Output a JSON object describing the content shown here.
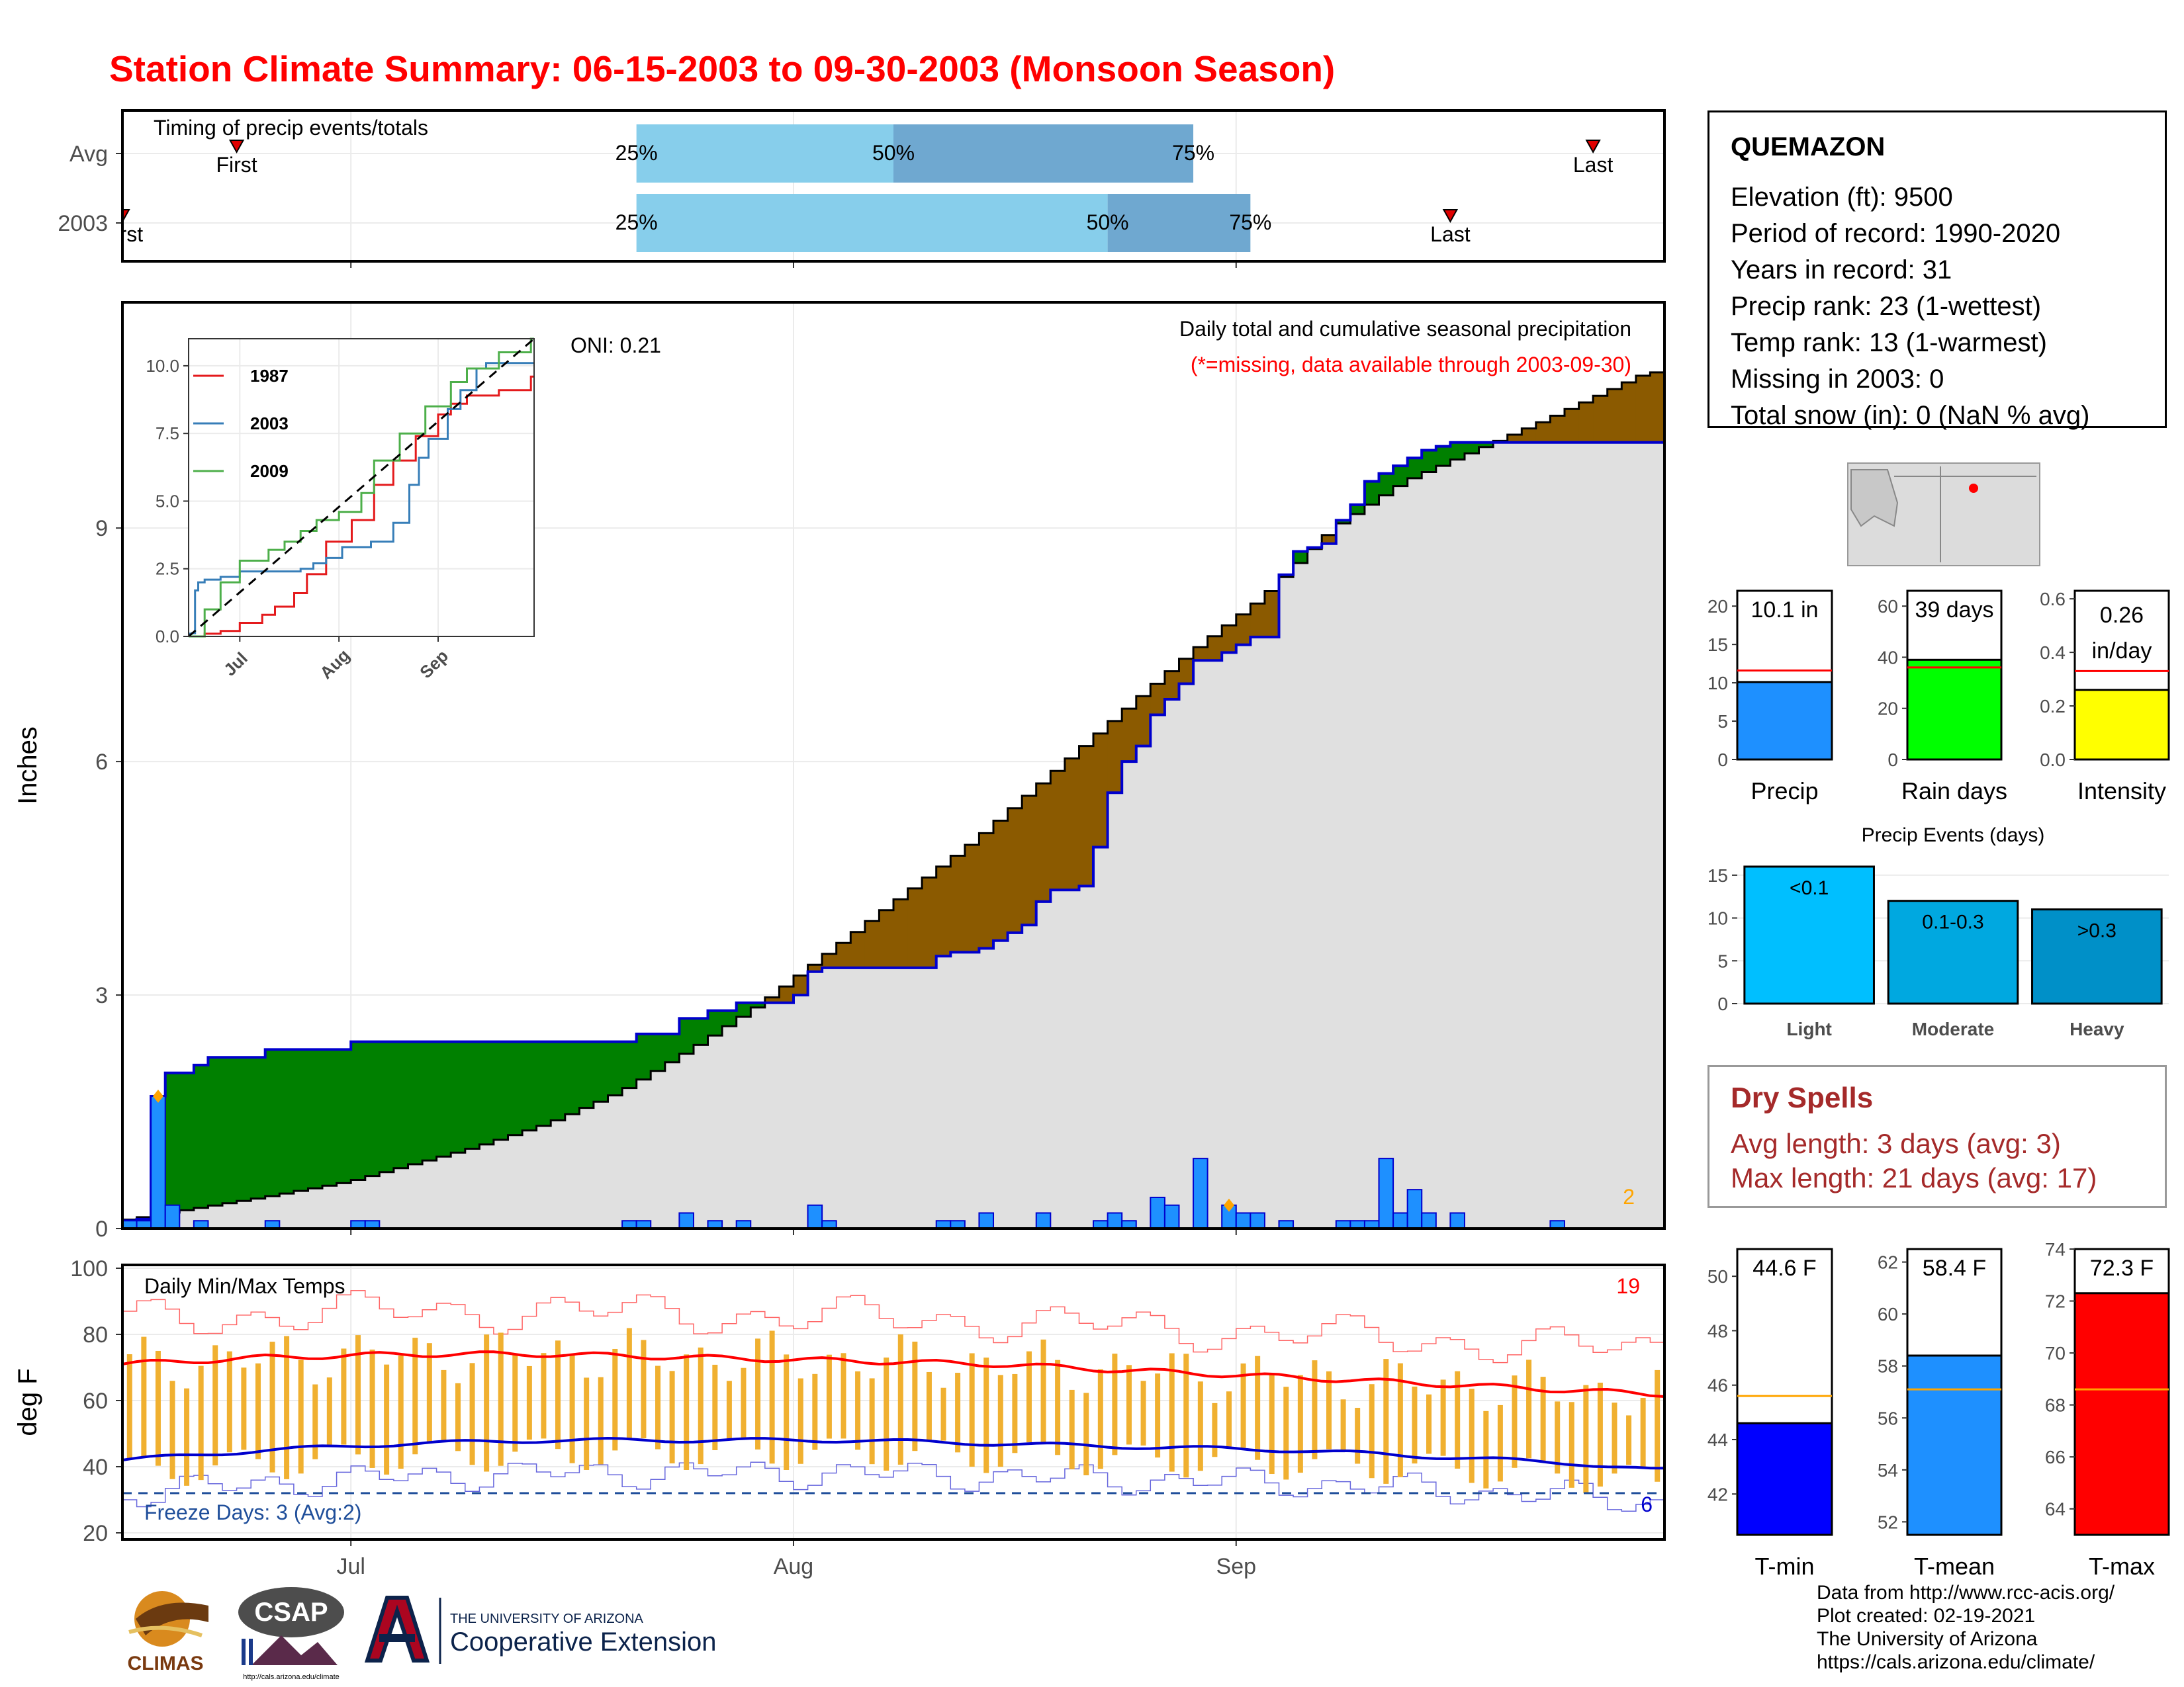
{
  "page": {
    "title": "Station Climate Summary: 06-15-2003 to 09-30-2003 (Monsoon Season)"
  },
  "timing_panel": {
    "title": "Timing of precip events/totals",
    "rows": [
      {
        "label": "Avg",
        "q25": "2003-07-21",
        "q50": "2003-08-08",
        "q75": "2003-08-29",
        "first": "2003-06-23",
        "last": "2003-09-26",
        "first_label": "First",
        "last_label": "Last"
      },
      {
        "label": "2003",
        "q25": "2003-07-21",
        "q50": "2003-08-23",
        "q75": "2003-09-02",
        "first": "2003-06-15",
        "last": "2003-09-16",
        "first_label": "First",
        "last_label": "Last"
      }
    ],
    "q_labels": [
      "25%",
      "50%",
      "75%"
    ],
    "colors": {
      "light": "#87ceeb",
      "dark": "#6fa8d0",
      "marker": "#e00000"
    }
  },
  "station_info": {
    "name": "QUEMAZON",
    "lines": [
      "Elevation (ft): 9500",
      "Period of record: 1990-2020",
      "Years in record: 31",
      "Precip rank: 23 (1-wettest)",
      "Temp rank: 13 (1-warmest)",
      "Missing in 2003: 0",
      "Total snow (in): 0 (NaN % avg)"
    ]
  },
  "dry_spells": {
    "title": "Dry Spells",
    "lines": [
      "Avg length: 3 days (avg: 3)",
      "Max length: 21 days (avg: 17)"
    ]
  },
  "footer": {
    "lines": [
      "Data from http://www.rcc-acis.org/",
      "Plot created: 02-19-2021",
      "The University of Arizona",
      "https://cals.arizona.edu/climate/"
    ]
  },
  "logos": {
    "climas": "CLIMAS",
    "csap": "CSAP",
    "csap_url": "http://cals.arizona.edu/climate",
    "ua_top": "THE UNIVERSITY OF ARIZONA",
    "ua_bottom": "Cooperative Extension"
  },
  "chart_data": [
    {
      "id": "precip_main",
      "type": "area",
      "ylabel": "Inches",
      "subtitle": "Daily total and cumulative seasonal precipitation",
      "note": "(*=missing, data available through 2003-09-30)",
      "oni": "ONI: 0.21",
      "corner_count": "2",
      "x_ticks": [
        "Jul",
        "Aug",
        "Sep"
      ],
      "yticks": [
        0,
        3,
        6,
        9
      ],
      "ylim": [
        0,
        11.9
      ],
      "x_start": "2003-06-15",
      "x_end": "2003-09-30",
      "cumulative_2003": {
        "x": [
          "2003-06-15",
          "2003-06-16",
          "2003-06-17",
          "2003-06-18",
          "2003-06-20",
          "2003-06-21",
          "2003-06-25",
          "2003-07-01",
          "2003-07-20",
          "2003-07-21",
          "2003-07-24",
          "2003-07-26",
          "2003-07-28",
          "2003-08-01",
          "2003-08-02",
          "2003-08-03",
          "2003-08-11",
          "2003-08-12",
          "2003-08-14",
          "2003-08-15",
          "2003-08-16",
          "2003-08-17",
          "2003-08-18",
          "2003-08-19",
          "2003-08-21",
          "2003-08-22",
          "2003-08-23",
          "2003-08-24",
          "2003-08-25",
          "2003-08-26",
          "2003-08-27",
          "2003-08-28",
          "2003-08-29",
          "2003-08-31",
          "2003-09-01",
          "2003-09-02",
          "2003-09-04",
          "2003-09-05",
          "2003-09-06",
          "2003-09-07",
          "2003-09-08",
          "2003-09-09",
          "2003-09-10",
          "2003-09-11",
          "2003-09-12",
          "2003-09-13",
          "2003-09-14",
          "2003-09-15",
          "2003-09-16",
          "2003-09-30"
        ],
        "y": [
          0.1,
          0.12,
          1.7,
          2.0,
          2.1,
          2.2,
          2.3,
          2.4,
          2.4,
          2.5,
          2.7,
          2.8,
          2.9,
          3.0,
          3.3,
          3.35,
          3.5,
          3.55,
          3.6,
          3.7,
          3.8,
          3.9,
          4.2,
          4.35,
          4.4,
          4.9,
          5.6,
          6.0,
          6.2,
          6.6,
          6.8,
          7.0,
          7.3,
          7.4,
          7.5,
          7.6,
          8.4,
          8.7,
          8.75,
          8.8,
          9.1,
          9.3,
          9.6,
          9.7,
          9.8,
          9.9,
          10.0,
          10.05,
          10.1,
          10.1
        ]
      },
      "cumulative_avg": {
        "x": [
          "2003-06-15",
          "2003-06-20",
          "2003-06-25",
          "2003-07-01",
          "2003-07-05",
          "2003-07-10",
          "2003-07-15",
          "2003-07-20",
          "2003-07-25",
          "2003-07-30",
          "2003-08-04",
          "2003-08-09",
          "2003-08-14",
          "2003-08-19",
          "2003-08-24",
          "2003-08-29",
          "2003-09-03",
          "2003-09-08",
          "2003-09-13",
          "2003-09-18",
          "2003-09-23",
          "2003-09-30"
        ],
        "y": [
          0.1,
          0.25,
          0.4,
          0.6,
          0.8,
          1.05,
          1.35,
          1.75,
          2.3,
          2.9,
          3.6,
          4.3,
          5.0,
          5.8,
          6.6,
          7.4,
          8.1,
          9.0,
          9.6,
          10.0,
          10.4,
          11.0
        ]
      },
      "daily_bars": {
        "x": [
          "2003-06-15",
          "2003-06-16",
          "2003-06-17",
          "2003-06-18",
          "2003-06-20",
          "2003-06-25",
          "2003-07-01",
          "2003-07-02",
          "2003-07-20",
          "2003-07-21",
          "2003-07-24",
          "2003-07-26",
          "2003-07-28",
          "2003-08-02",
          "2003-08-03",
          "2003-08-11",
          "2003-08-12",
          "2003-08-14",
          "2003-08-18",
          "2003-08-22",
          "2003-08-23",
          "2003-08-24",
          "2003-08-26",
          "2003-08-27",
          "2003-08-29",
          "2003-08-31",
          "2003-09-01",
          "2003-09-02",
          "2003-09-04",
          "2003-09-08",
          "2003-09-09",
          "2003-09-10",
          "2003-09-11",
          "2003-09-12",
          "2003-09-13",
          "2003-09-14",
          "2003-09-16",
          "2003-09-23"
        ],
        "y": [
          0.1,
          0.1,
          1.7,
          0.3,
          0.1,
          0.1,
          0.1,
          0.1,
          0.1,
          0.1,
          0.2,
          0.1,
          0.1,
          0.3,
          0.1,
          0.1,
          0.1,
          0.2,
          0.2,
          0.1,
          0.2,
          0.1,
          0.4,
          0.3,
          0.9,
          0.3,
          0.2,
          0.2,
          0.1,
          0.1,
          0.1,
          0.1,
          0.9,
          0.2,
          0.5,
          0.2,
          0.2,
          0.1
        ]
      },
      "missing_markers": [
        "2003-06-17",
        "2003-08-31"
      ],
      "colors": {
        "ahead": "#008000",
        "behind": "#8b5a00",
        "fill": "#e0e0e0",
        "line2003": "#0000cd",
        "lineavg": "#000000",
        "bars": "#1e90ff",
        "missing": "#ffa500",
        "note": "#ff0000"
      }
    },
    {
      "id": "inset",
      "type": "line",
      "x_ticks": [
        "Jul",
        "Aug",
        "Sep"
      ],
      "yticks": [
        0.0,
        2.5,
        5.0,
        7.5,
        10.0
      ],
      "ylim": [
        0,
        11
      ],
      "series": [
        {
          "name": "1987",
          "color": "#e41a1c",
          "x": [
            "2003-06-15",
            "2003-06-20",
            "2003-06-25",
            "2003-07-01",
            "2003-07-08",
            "2003-07-12",
            "2003-07-18",
            "2003-07-22",
            "2003-07-28",
            "2003-08-05",
            "2003-08-12",
            "2003-08-18",
            "2003-08-25",
            "2003-09-01",
            "2003-09-05",
            "2003-09-10",
            "2003-09-20",
            "2003-09-30"
          ],
          "y": [
            0.0,
            0.1,
            0.2,
            0.5,
            0.8,
            1.1,
            1.6,
            2.3,
            3.5,
            4.3,
            5.6,
            6.5,
            7.4,
            8.2,
            8.6,
            8.9,
            9.1,
            9.6
          ]
        },
        {
          "name": "2003",
          "color": "#377eb8",
          "x": [
            "2003-06-15",
            "2003-06-16",
            "2003-06-17",
            "2003-06-18",
            "2003-06-20",
            "2003-06-25",
            "2003-07-01",
            "2003-07-20",
            "2003-07-24",
            "2003-07-28",
            "2003-08-02",
            "2003-08-11",
            "2003-08-18",
            "2003-08-23",
            "2003-08-26",
            "2003-08-29",
            "2003-09-04",
            "2003-09-08",
            "2003-09-13",
            "2003-09-16",
            "2003-09-30"
          ],
          "y": [
            0.1,
            0.12,
            1.7,
            2.0,
            2.1,
            2.2,
            2.4,
            2.5,
            2.7,
            2.9,
            3.3,
            3.5,
            4.2,
            5.6,
            6.6,
            7.3,
            8.4,
            9.1,
            9.9,
            10.1,
            10.1
          ]
        },
        {
          "name": "2009",
          "color": "#4daf4a",
          "x": [
            "2003-06-15",
            "2003-06-20",
            "2003-06-25",
            "2003-07-01",
            "2003-07-10",
            "2003-07-15",
            "2003-07-20",
            "2003-07-25",
            "2003-08-01",
            "2003-08-08",
            "2003-08-12",
            "2003-08-20",
            "2003-08-28",
            "2003-09-05",
            "2003-09-10",
            "2003-09-20",
            "2003-09-30"
          ],
          "y": [
            0.0,
            1.0,
            2.0,
            2.8,
            3.2,
            3.5,
            3.9,
            4.3,
            4.6,
            5.3,
            6.5,
            7.5,
            8.5,
            9.4,
            9.9,
            10.5,
            11.0
          ]
        },
        {
          "name": "",
          "color": "#000000",
          "dashed": true,
          "x": [
            "2003-06-15",
            "2003-09-30"
          ],
          "y": [
            0.0,
            11.0
          ]
        }
      ]
    },
    {
      "id": "temps",
      "type": "bar",
      "title": "Daily Min/Max Temps",
      "ylabel": "deg F",
      "yticks": [
        20,
        40,
        60,
        80,
        100
      ],
      "ylim": [
        18,
        101
      ],
      "x_ticks": [
        "Jul",
        "Aug",
        "Sep"
      ],
      "freeze_label": "Freeze Days: 3 (Avg:2)",
      "record_high_count": "19",
      "record_low_count": "6",
      "freeze_line": 32,
      "avg_max": {
        "x": [
          "2003-06-15",
          "2003-06-25",
          "2003-07-05",
          "2003-07-15",
          "2003-07-25",
          "2003-08-05",
          "2003-08-15",
          "2003-08-25",
          "2003-09-05",
          "2003-09-15",
          "2003-09-25",
          "2003-09-30"
        ],
        "y": [
          71,
          73,
          74,
          74,
          73,
          72,
          71,
          69,
          67,
          65,
          63,
          62
        ]
      },
      "avg_min": {
        "x": [
          "2003-06-15",
          "2003-06-25",
          "2003-07-05",
          "2003-07-15",
          "2003-07-25",
          "2003-08-05",
          "2003-08-15",
          "2003-08-25",
          "2003-09-05",
          "2003-09-15",
          "2003-09-25",
          "2003-09-30"
        ],
        "y": [
          42,
          45,
          47,
          48,
          48,
          48,
          47,
          46,
          45,
          43,
          41,
          39
        ]
      },
      "colors": {
        "bars": "#f0b030",
        "avgmax": "#ff0000",
        "avgmin": "#0000cd",
        "freeze": "#1f4e9a",
        "records_high": "#ff6666",
        "records_low": "#6666dd"
      }
    },
    {
      "id": "precip_total",
      "type": "bar",
      "label": "Precip",
      "value_label": "10.1 in",
      "value": 10.1,
      "avg": 11.6,
      "yticks": [
        0,
        5,
        10,
        15,
        20
      ],
      "ylim": [
        0,
        22
      ],
      "color": "#1e90ff"
    },
    {
      "id": "rain_days",
      "type": "bar",
      "label": "Rain days",
      "value_label": "39 days",
      "value": 39,
      "avg": 36,
      "yticks": [
        0,
        20,
        40,
        60
      ],
      "ylim": [
        0,
        66
      ],
      "color": "#00ff00"
    },
    {
      "id": "intensity",
      "type": "bar",
      "label": "Intensity",
      "value_label_lines": [
        "0.26",
        "in/day"
      ],
      "value": 0.26,
      "avg": 0.33,
      "yticks": [
        0.0,
        0.2,
        0.4,
        0.6
      ],
      "ytick_labels": [
        "0.0",
        "0.2",
        "0.4",
        "0.6"
      ],
      "ylim": [
        0,
        0.63
      ],
      "color": "#ffff00"
    },
    {
      "id": "precip_events",
      "type": "bar",
      "title": "Precip Events (days)",
      "categories": [
        "Light",
        "Moderate",
        "Heavy"
      ],
      "bar_labels": [
        "<0.1",
        "0.1-0.3",
        ">0.3"
      ],
      "values": [
        16,
        12,
        11
      ],
      "yticks": [
        0,
        5,
        10,
        15
      ],
      "ylim": [
        0,
        17
      ],
      "colors": [
        "#00bfff",
        "#00a8e0",
        "#0090c8"
      ]
    },
    {
      "id": "tmin",
      "type": "bar",
      "label": "T-min",
      "value_label": "44.6 F",
      "value": 44.6,
      "avg": 45.6,
      "yticks": [
        42,
        44,
        46,
        48,
        50
      ],
      "ylim": [
        40.5,
        51
      ],
      "color": "#0000ff"
    },
    {
      "id": "tmean",
      "type": "bar",
      "label": "T-mean",
      "value_label": "58.4 F",
      "value": 58.4,
      "avg": 57.1,
      "yticks": [
        52,
        54,
        56,
        58,
        60,
        62
      ],
      "ylim": [
        51.5,
        62.5
      ],
      "color": "#1e90ff"
    },
    {
      "id": "tmax",
      "type": "bar",
      "label": "T-max",
      "value_label": "72.3 F",
      "value": 72.3,
      "avg": 68.6,
      "yticks": [
        64,
        66,
        68,
        70,
        72,
        74
      ],
      "ylim": [
        63,
        74
      ],
      "color": "#ff0000"
    }
  ]
}
